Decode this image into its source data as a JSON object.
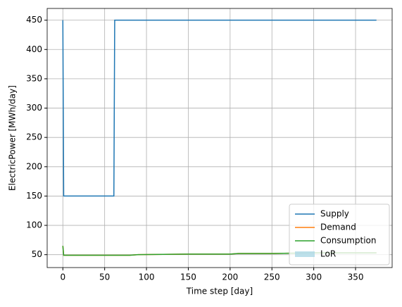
{
  "chart_data": {
    "type": "line",
    "x_label": "Time step [day]",
    "y_label": "ElectricPower [MWh/day]",
    "x": [
      0,
      1,
      61,
      62,
      80,
      90,
      150,
      200,
      210,
      250,
      300,
      350,
      375
    ],
    "series": [
      {
        "name": "Supply",
        "color": "#1f77b4",
        "values": [
          450,
          150,
          150,
          450,
          450,
          450,
          450,
          450,
          450,
          450,
          450,
          450,
          450
        ]
      },
      {
        "name": "Demand",
        "color": "#ff7f0e",
        "values": [
          65,
          49,
          49,
          49,
          49,
          50,
          51,
          51,
          52,
          52,
          53,
          53,
          53
        ]
      },
      {
        "name": "Consumption",
        "color": "#2ca02c",
        "values": [
          65,
          49,
          49,
          49,
          49,
          50,
          51,
          51,
          52,
          52,
          53,
          53,
          53
        ]
      },
      {
        "name": "LoR",
        "color": "#add8e6",
        "kind": "area",
        "values": [
          null,
          null,
          null,
          null,
          null,
          null,
          null,
          null,
          null,
          null,
          null,
          null,
          null
        ]
      }
    ],
    "xlim": [
      -18.75,
      393.75
    ],
    "ylim": [
      28,
      470
    ],
    "xticks": [
      0,
      50,
      100,
      150,
      200,
      250,
      300,
      350
    ],
    "yticks": [
      50,
      100,
      150,
      200,
      250,
      300,
      350,
      400,
      450
    ],
    "grid": true,
    "legend": "lower right"
  }
}
